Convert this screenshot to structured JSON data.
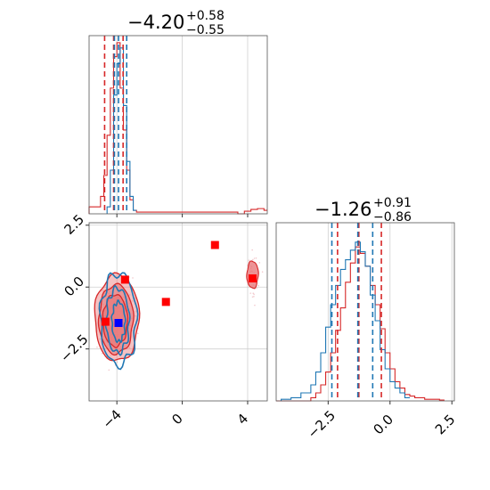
{
  "chart_data": {
    "type": "corner",
    "colors": {
      "red": "#d62728",
      "blue": "#1f77b4",
      "red_fill": "#e8787a",
      "marker_red": "#ff0000",
      "marker_blue": "#0000ff",
      "grid": "#d0d0d0"
    },
    "param1": {
      "title_value": "−4.20",
      "title_plus": "+0.58",
      "title_minus": "−0.55",
      "range": [
        -5.7,
        5.2
      ],
      "ticks": [
        -4,
        0,
        4
      ],
      "tick_labels": [
        "−4",
        "0",
        "4"
      ],
      "red_quantiles": [
        -4.75,
        -4.2,
        -3.62
      ],
      "blue_quantiles": [
        -4.15,
        -3.9,
        -3.4
      ],
      "red_hist": [
        [
          -5.7,
          0.04
        ],
        [
          -5.2,
          0.04
        ],
        [
          -5.0,
          0.1
        ],
        [
          -4.8,
          0.22
        ],
        [
          -4.6,
          0.45
        ],
        [
          -4.4,
          0.72
        ],
        [
          -4.2,
          0.9
        ],
        [
          -4.0,
          0.98
        ],
        [
          -3.8,
          0.72
        ],
        [
          -3.6,
          0.48
        ],
        [
          -3.4,
          0.25
        ],
        [
          -3.2,
          0.08
        ],
        [
          -3.0,
          0.02
        ],
        [
          -2.8,
          0.01
        ],
        [
          3.4,
          0.0
        ],
        [
          3.8,
          0.015
        ],
        [
          4.2,
          0.025
        ],
        [
          4.6,
          0.03
        ],
        [
          5.0,
          0.02
        ]
      ],
      "blue_hist": [
        [
          -4.6,
          0.04
        ],
        [
          -4.4,
          0.25
        ],
        [
          -4.2,
          0.68
        ],
        [
          -4.0,
          0.86
        ],
        [
          -3.8,
          0.95
        ],
        [
          -3.6,
          0.62
        ],
        [
          -3.4,
          0.3
        ],
        [
          -3.2,
          0.1
        ],
        [
          -3.0,
          0.02
        ]
      ]
    },
    "param2": {
      "title_value": "−1.26",
      "title_plus": "+0.91",
      "title_minus": "−0.86",
      "range": [
        -4.6,
        2.6
      ],
      "ticks": [
        -2.5,
        0.0,
        2.5
      ],
      "tick_labels": [
        "−2.5",
        "0.0",
        "2.5"
      ],
      "red_quantiles": [
        -2.12,
        -1.26,
        -0.35
      ],
      "blue_quantiles": [
        -2.35,
        -1.3,
        -0.7
      ],
      "red_hist": [
        [
          -4.6,
          0.0
        ],
        [
          -3.2,
          0.02
        ],
        [
          -3.0,
          0.05
        ],
        [
          -2.8,
          0.1
        ],
        [
          -2.6,
          0.18
        ],
        [
          -2.4,
          0.3
        ],
        [
          -2.2,
          0.44
        ],
        [
          -2.0,
          0.58
        ],
        [
          -1.8,
          0.74
        ],
        [
          -1.6,
          0.86
        ],
        [
          -1.4,
          0.96
        ],
        [
          -1.2,
          0.92
        ],
        [
          -1.0,
          0.84
        ],
        [
          -0.8,
          0.72
        ],
        [
          -0.6,
          0.6
        ],
        [
          -0.4,
          0.45
        ],
        [
          -0.2,
          0.3
        ],
        [
          0.0,
          0.2
        ],
        [
          0.2,
          0.12
        ],
        [
          0.4,
          0.08
        ],
        [
          0.6,
          0.04
        ],
        [
          0.8,
          0.03
        ],
        [
          1.0,
          0.02
        ],
        [
          1.4,
          0.01
        ],
        [
          2.0,
          0.005
        ]
      ],
      "blue_hist": [
        [
          -4.4,
          0.01
        ],
        [
          -4.0,
          0.02
        ],
        [
          -3.6,
          0.05
        ],
        [
          -3.2,
          0.1
        ],
        [
          -3.0,
          0.18
        ],
        [
          -2.8,
          0.3
        ],
        [
          -2.6,
          0.46
        ],
        [
          -2.4,
          0.6
        ],
        [
          -2.2,
          0.72
        ],
        [
          -2.0,
          0.82
        ],
        [
          -1.8,
          0.88
        ],
        [
          -1.6,
          0.94
        ],
        [
          -1.4,
          0.99
        ],
        [
          -1.2,
          0.93
        ],
        [
          -1.0,
          0.84
        ],
        [
          -0.8,
          0.66
        ],
        [
          -0.6,
          0.5
        ],
        [
          -0.4,
          0.32
        ],
        [
          -0.2,
          0.2
        ],
        [
          0.0,
          0.12
        ],
        [
          0.2,
          0.08
        ],
        [
          0.4,
          0.05
        ],
        [
          0.6,
          0.02
        ]
      ]
    },
    "joint": {
      "red_markers": [
        [
          -4.7,
          -1.4
        ],
        [
          -3.5,
          0.3
        ],
        [
          -1.0,
          -0.6
        ],
        [
          2.0,
          1.7
        ],
        [
          4.3,
          0.35
        ]
      ],
      "blue_markers": [
        [
          -3.9,
          -1.45
        ]
      ],
      "red_contours": [
        {
          "cx": -4.0,
          "cy": -1.25,
          "rx": 1.35,
          "ry": 1.75,
          "opacity": 0.45
        },
        {
          "cx": -4.05,
          "cy": -1.3,
          "rx": 1.05,
          "ry": 1.4,
          "opacity": 0.6
        },
        {
          "cx": -4.1,
          "cy": -1.35,
          "rx": 0.75,
          "ry": 1.05,
          "opacity": 0.75
        }
      ],
      "blue_contours": [
        {
          "cx": -3.9,
          "cy": -1.3,
          "rx": 1.1,
          "ry": 1.85
        },
        {
          "cx": -3.95,
          "cy": -1.35,
          "rx": 0.7,
          "ry": 1.3
        },
        {
          "cx": -3.9,
          "cy": -1.4,
          "rx": 0.4,
          "ry": 0.8
        }
      ],
      "side_blob": {
        "cx": 4.3,
        "cy": 0.5,
        "rx": 0.35,
        "ry": 0.55
      }
    }
  }
}
